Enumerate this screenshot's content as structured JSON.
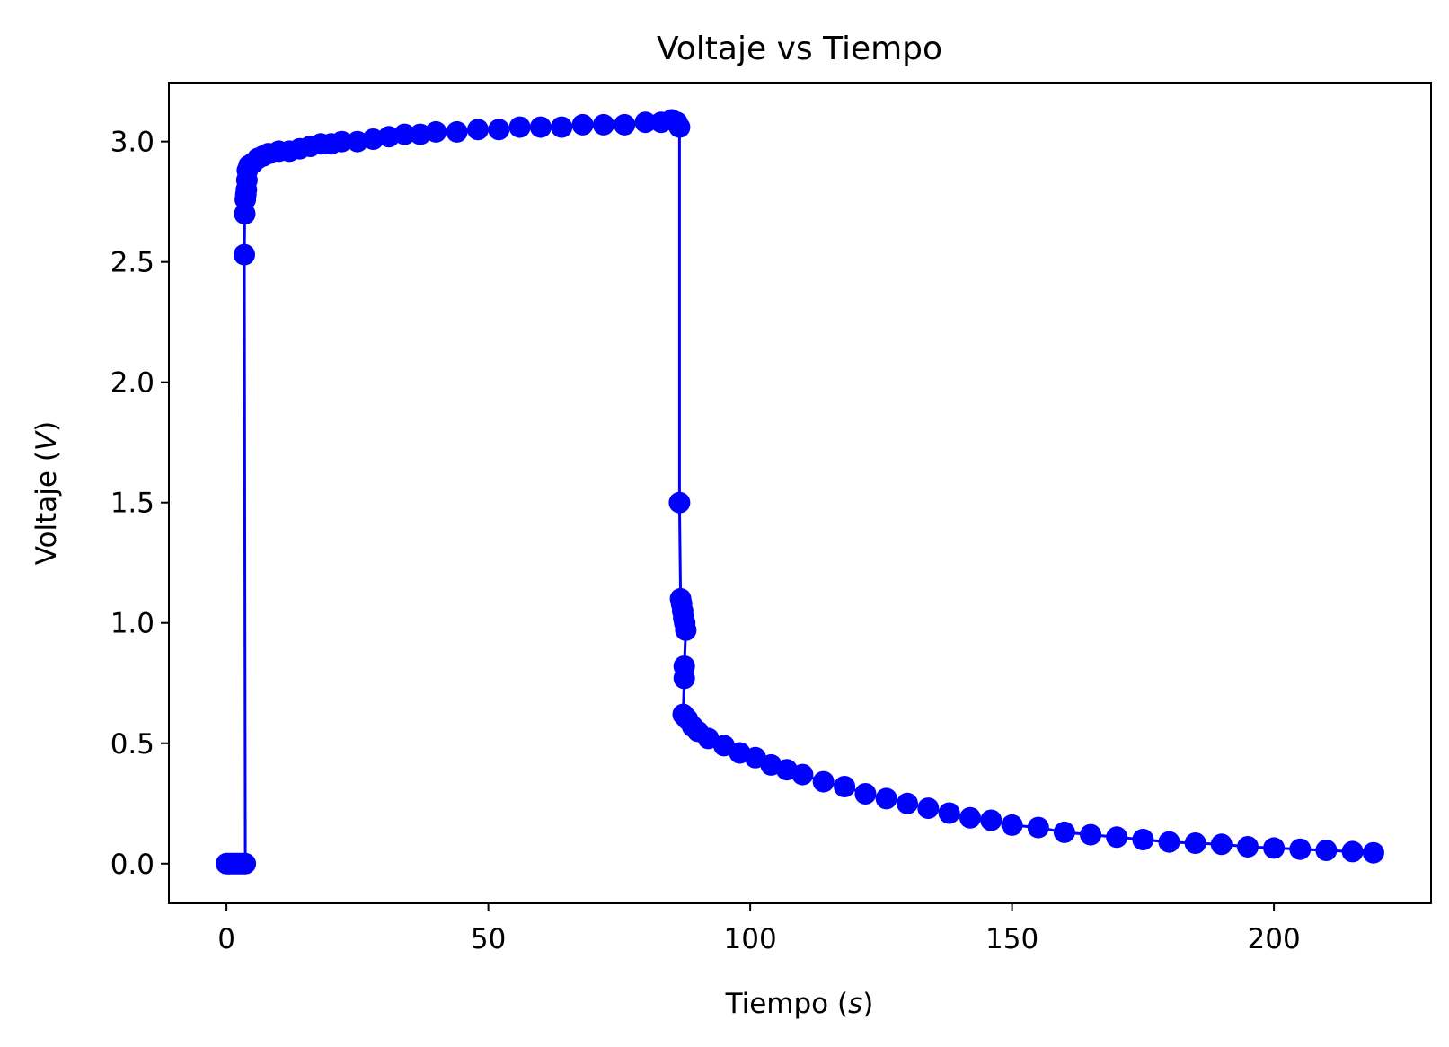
{
  "chart_data": {
    "type": "line",
    "title": "Voltaje vs Tiempo",
    "xlabel": {
      "prefix": "Tiempo (",
      "unit": "s",
      "suffix": ")"
    },
    "ylabel": {
      "prefix": "Voltaje (",
      "unit": "V",
      "suffix": ")"
    },
    "xlim": [
      -11,
      230
    ],
    "ylim": [
      -0.165,
      3.245
    ],
    "x_ticks": [
      0,
      50,
      100,
      150,
      200
    ],
    "x_tick_labels": [
      "0",
      "50",
      "100",
      "150",
      "200"
    ],
    "y_ticks": [
      0.0,
      0.5,
      1.0,
      1.5,
      2.0,
      2.5,
      3.0
    ],
    "y_tick_labels": [
      "0.0",
      "0.5",
      "1.0",
      "1.5",
      "2.0",
      "2.5",
      "3.0"
    ],
    "grid": false,
    "legend": "none",
    "series": [
      {
        "color": "#0000ff",
        "marker": "circle",
        "points": [
          [
            0.0,
            0.0
          ],
          [
            0.4,
            0.0
          ],
          [
            0.8,
            0.0
          ],
          [
            1.2,
            0.0
          ],
          [
            1.6,
            0.0
          ],
          [
            2.0,
            0.0
          ],
          [
            2.4,
            0.0
          ],
          [
            2.8,
            0.0
          ],
          [
            3.2,
            0.0
          ],
          [
            3.6,
            0.0
          ],
          [
            3.4,
            2.53
          ],
          [
            3.5,
            2.7
          ],
          [
            3.6,
            2.76
          ],
          [
            3.7,
            2.78
          ],
          [
            3.8,
            2.8
          ],
          [
            3.9,
            2.84
          ],
          [
            4.0,
            2.88
          ],
          [
            4.3,
            2.9
          ],
          [
            5.0,
            2.91
          ],
          [
            6.0,
            2.93
          ],
          [
            7.0,
            2.94
          ],
          [
            8.0,
            2.95
          ],
          [
            10.0,
            2.96
          ],
          [
            12.0,
            2.96
          ],
          [
            14.0,
            2.97
          ],
          [
            16.0,
            2.98
          ],
          [
            18.0,
            2.99
          ],
          [
            20.0,
            2.99
          ],
          [
            22.0,
            3.0
          ],
          [
            25.0,
            3.0
          ],
          [
            28.0,
            3.01
          ],
          [
            31.0,
            3.02
          ],
          [
            34.0,
            3.03
          ],
          [
            37.0,
            3.03
          ],
          [
            40.0,
            3.04
          ],
          [
            44.0,
            3.04
          ],
          [
            48.0,
            3.05
          ],
          [
            52.0,
            3.05
          ],
          [
            56.0,
            3.06
          ],
          [
            60.0,
            3.06
          ],
          [
            64.0,
            3.06
          ],
          [
            68.0,
            3.07
          ],
          [
            72.0,
            3.07
          ],
          [
            76.0,
            3.07
          ],
          [
            80.0,
            3.08
          ],
          [
            83.0,
            3.08
          ],
          [
            85.0,
            3.09
          ],
          [
            86.0,
            3.08
          ],
          [
            86.5,
            3.06
          ],
          [
            86.5,
            1.5
          ],
          [
            86.7,
            1.1
          ],
          [
            86.9,
            1.08
          ],
          [
            87.1,
            1.05
          ],
          [
            87.3,
            1.02
          ],
          [
            87.5,
            1.0
          ],
          [
            87.7,
            0.97
          ],
          [
            87.4,
            0.82
          ],
          [
            87.4,
            0.77
          ],
          [
            87.2,
            0.62
          ],
          [
            87.6,
            0.61
          ],
          [
            88.0,
            0.6
          ],
          [
            89.0,
            0.57
          ],
          [
            90.0,
            0.55
          ],
          [
            92.0,
            0.52
          ],
          [
            95.0,
            0.49
          ],
          [
            98.0,
            0.46
          ],
          [
            101.0,
            0.44
          ],
          [
            104.0,
            0.41
          ],
          [
            107.0,
            0.39
          ],
          [
            110.0,
            0.37
          ],
          [
            114.0,
            0.34
          ],
          [
            118.0,
            0.32
          ],
          [
            122.0,
            0.29
          ],
          [
            126.0,
            0.27
          ],
          [
            130.0,
            0.25
          ],
          [
            134.0,
            0.23
          ],
          [
            138.0,
            0.21
          ],
          [
            142.0,
            0.19
          ],
          [
            146.0,
            0.18
          ],
          [
            150.0,
            0.16
          ],
          [
            155.0,
            0.15
          ],
          [
            160.0,
            0.13
          ],
          [
            165.0,
            0.12
          ],
          [
            170.0,
            0.11
          ],
          [
            175.0,
            0.1
          ],
          [
            180.0,
            0.09
          ],
          [
            185.0,
            0.085
          ],
          [
            190.0,
            0.08
          ],
          [
            195.0,
            0.07
          ],
          [
            200.0,
            0.065
          ],
          [
            205.0,
            0.06
          ],
          [
            210.0,
            0.055
          ],
          [
            215.0,
            0.05
          ],
          [
            219.0,
            0.045
          ]
        ]
      }
    ]
  }
}
